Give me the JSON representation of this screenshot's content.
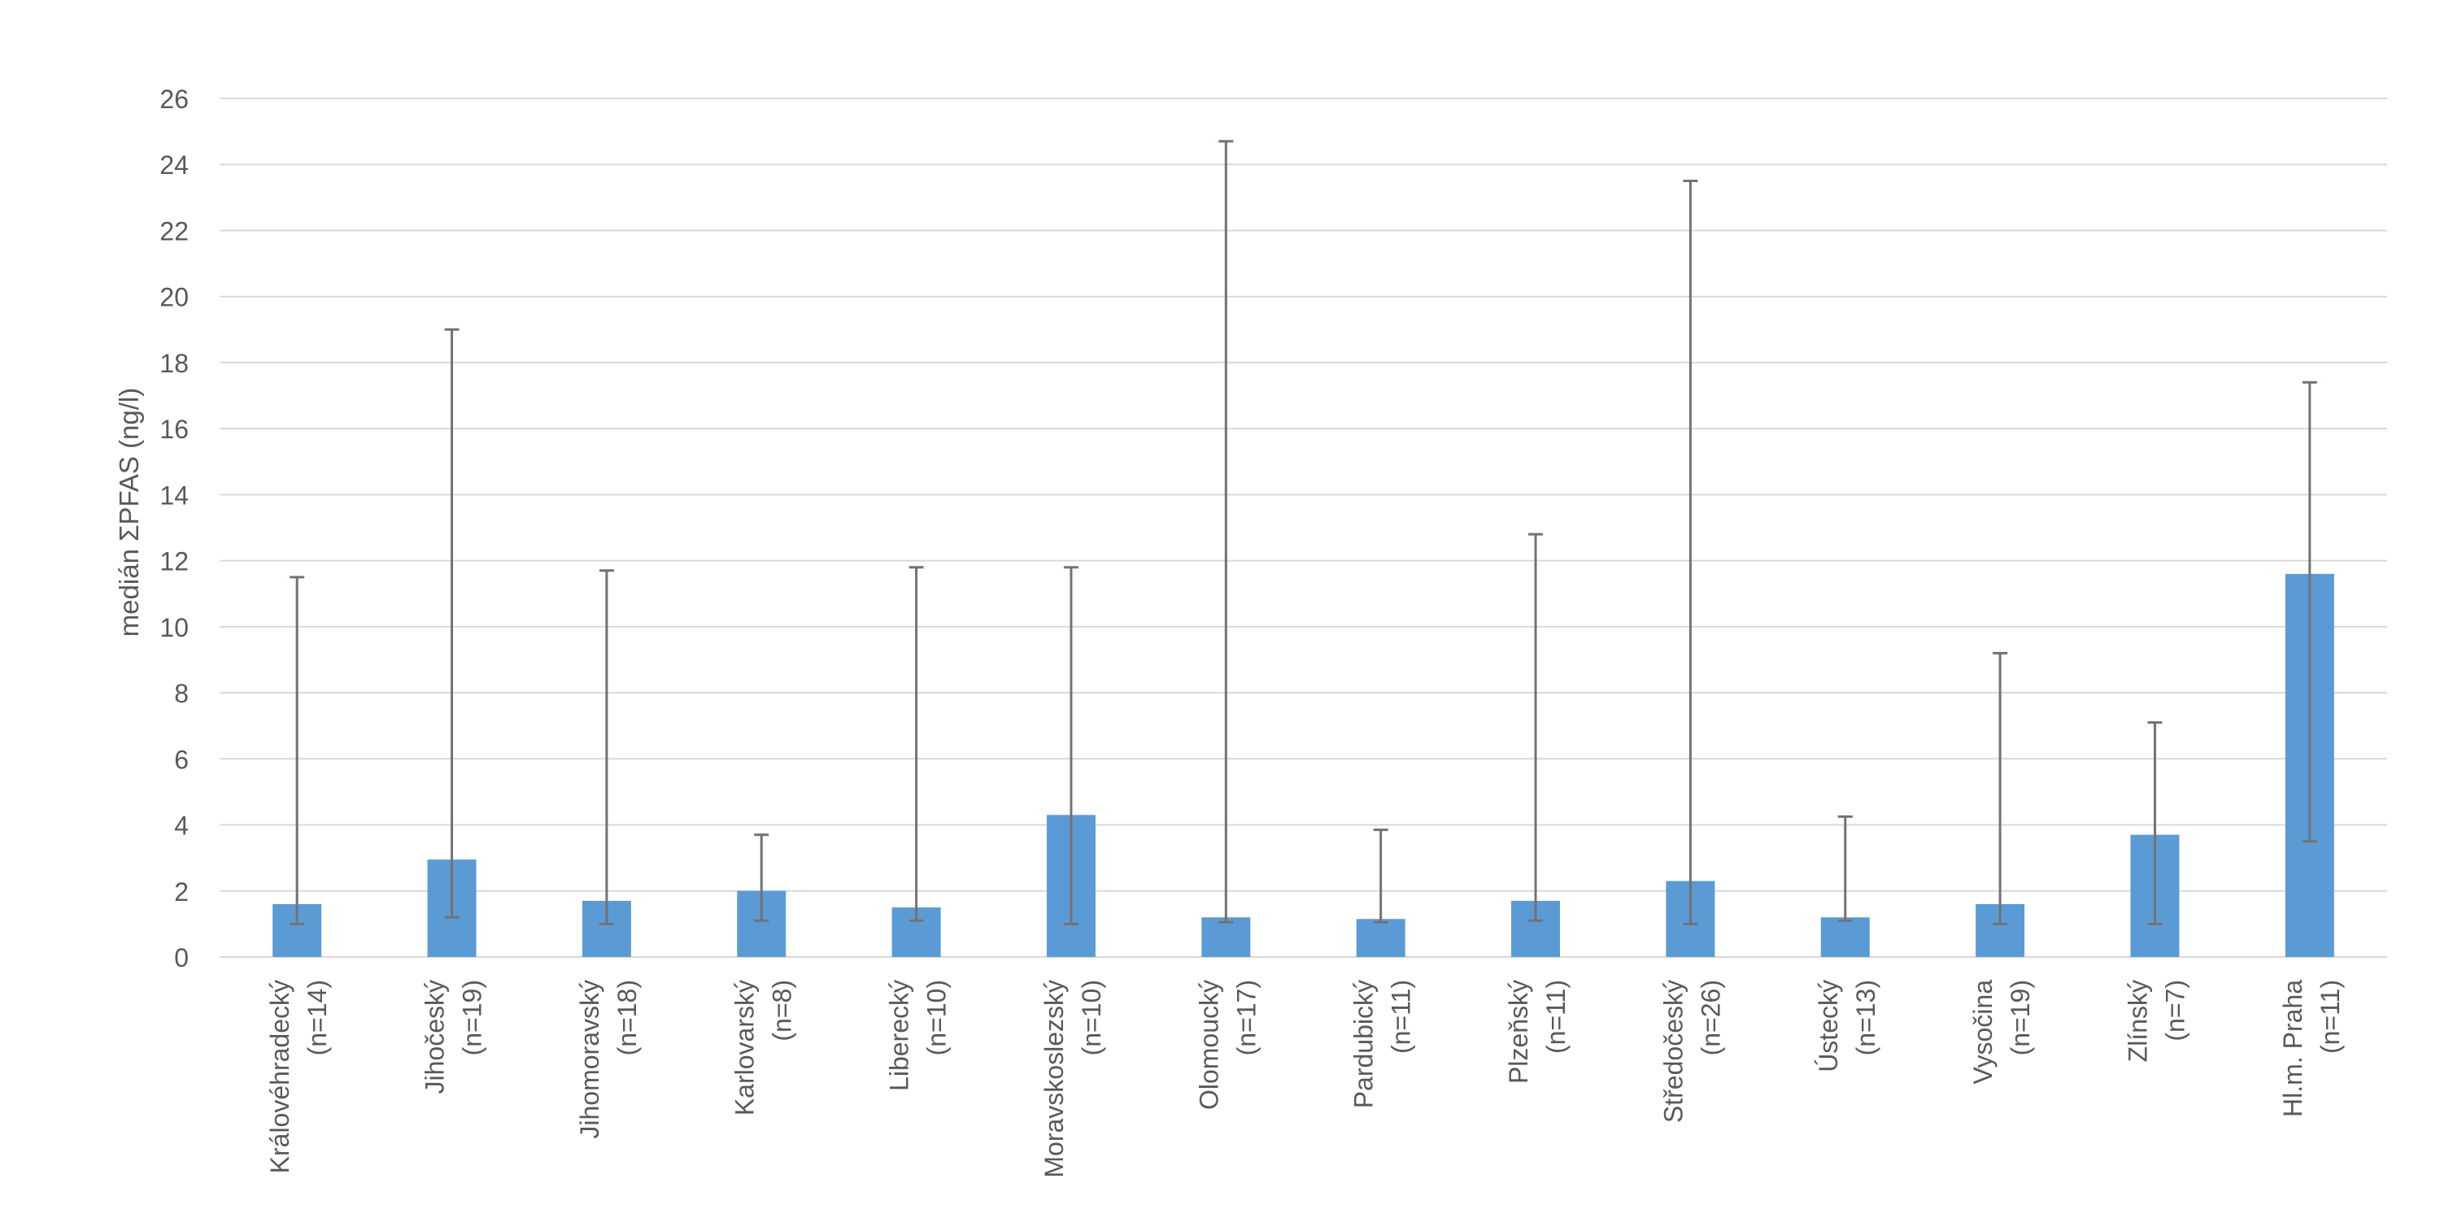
{
  "chart_data": {
    "type": "bar",
    "title": "",
    "xlabel": "",
    "ylabel": "medián ΣPFAS  (ng/l)",
    "ylim": [
      0,
      26
    ],
    "yticks": [
      0,
      2,
      4,
      6,
      8,
      10,
      12,
      14,
      16,
      18,
      20,
      22,
      24,
      26
    ],
    "grid": true,
    "legend": "none",
    "bar_color": "#5b9bd5",
    "errorbar_color": "#767171",
    "gridline_color": "#d9d9d9",
    "categories": [
      {
        "name": "Královéhradecký",
        "n": "(n=14)"
      },
      {
        "name": "Jihočeský",
        "n": "(n=19)"
      },
      {
        "name": "Jihomoravský",
        "n": "(n=18)"
      },
      {
        "name": "Karlovarský",
        "n": "(n=8)"
      },
      {
        "name": "Liberecký",
        "n": "(n=10)"
      },
      {
        "name": "Moravskoslezský",
        "n": "(n=10)"
      },
      {
        "name": "Olomoucký",
        "n": "(n=17)"
      },
      {
        "name": "Pardubický",
        "n": "(n=11)"
      },
      {
        "name": "Plzeňský",
        "n": "(n=11)"
      },
      {
        "name": "Středočeský",
        "n": "(n=26)"
      },
      {
        "name": "Ústecký",
        "n": "(n=13)"
      },
      {
        "name": "Vysočina",
        "n": "(n=19)"
      },
      {
        "name": "Zlínský",
        "n": "(n=7)"
      },
      {
        "name": "Hl.m. Praha",
        "n": "(n=11)"
      }
    ],
    "values": [
      1.6,
      2.95,
      1.7,
      2.0,
      1.5,
      4.3,
      1.2,
      1.15,
      1.7,
      2.3,
      1.2,
      1.6,
      3.7,
      11.6
    ],
    "error_low": [
      1.0,
      1.2,
      1.0,
      1.1,
      1.1,
      1.0,
      1.05,
      1.05,
      1.1,
      1.0,
      1.1,
      1.0,
      1.0,
      3.5
    ],
    "error_high": [
      11.5,
      19.0,
      11.7,
      3.7,
      11.8,
      11.8,
      24.7,
      3.85,
      12.8,
      23.5,
      4.25,
      9.2,
      7.1,
      17.4
    ]
  }
}
